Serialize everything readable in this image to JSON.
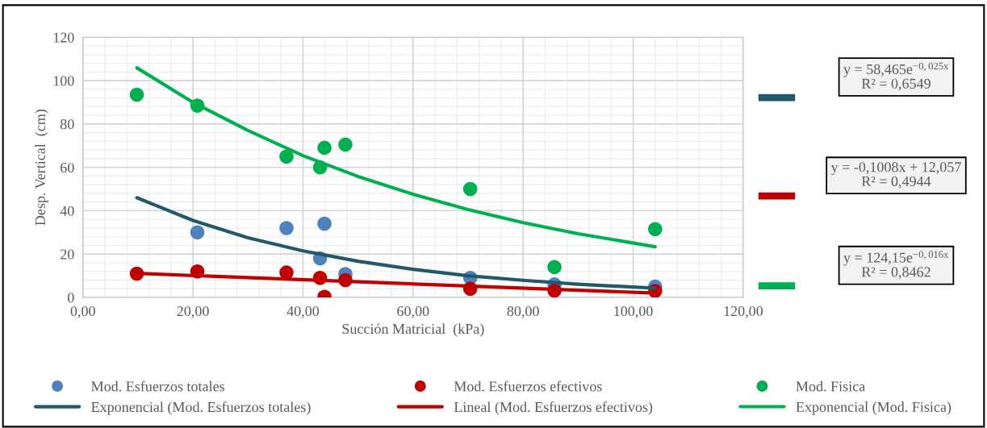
{
  "chart_data": {
    "type": "scatter",
    "xlabel": "Succión Matricial  (kPa)",
    "ylabel": "Desp. Vertical  (cm)",
    "xlim": [
      0,
      120
    ],
    "ylim": [
      0,
      120
    ],
    "xticks": [
      {
        "value": 0,
        "label": "0,00"
      },
      {
        "value": 20,
        "label": "20,00"
      },
      {
        "value": 40,
        "label": "40,00"
      },
      {
        "value": 60,
        "label": "60,00"
      },
      {
        "value": 80,
        "label": "80,00"
      },
      {
        "value": 100,
        "label": "100,00"
      },
      {
        "value": 120,
        "label": "120,00"
      }
    ],
    "yticks": [
      0,
      20,
      40,
      60,
      80,
      100,
      120
    ],
    "grid": true,
    "legend": "bottom",
    "marker": "circle",
    "series": [
      {
        "name": "Mod. Esfuerzos totales",
        "color": "#4f81bd",
        "x": [
          20.8,
          37,
          43.1,
          43.9,
          47.7,
          70.4,
          85.7,
          104
        ],
        "values": [
          30,
          32,
          18,
          34,
          10.8,
          9,
          6,
          5
        ]
      },
      {
        "name": "Exponencial (Mod. Esfuerzos totales)",
        "type": "line",
        "color": "#215968",
        "marker": "none",
        "x": [
          9.8,
          20,
          30,
          40,
          50,
          60,
          70,
          80,
          90,
          104
        ],
        "values": [
          46,
          35.5,
          27.5,
          21.5,
          16.7,
          13,
          10,
          7.9,
          6.1,
          4.3
        ]
      },
      {
        "name": "Mod. Esfuerzos efectivos",
        "color": "#c00000",
        "x": [
          9.8,
          20.8,
          37,
          43.1,
          43.9,
          47.7,
          70.4,
          85.7,
          104
        ],
        "values": [
          11,
          12,
          11.5,
          9,
          0.3,
          8,
          4,
          3.2,
          3
        ]
      },
      {
        "name": "Lineal (Mod. Esfuerzos efectivos)",
        "type": "line",
        "color": "#c00000",
        "marker": "none",
        "x": [
          9.8,
          104
        ],
        "values": [
          11.1,
          2
        ]
      },
      {
        "name": "Mod. Fisica",
        "color": "#00b050",
        "x": [
          9.8,
          20.8,
          37,
          43.1,
          43.9,
          47.7,
          70.4,
          85.7,
          104
        ],
        "values": [
          93.5,
          88.5,
          65,
          60,
          69,
          70.5,
          50,
          14,
          31.5
        ]
      },
      {
        "name": "Exponencial (Mod. Fisica)",
        "type": "line",
        "color": "#00b050",
        "marker": "none",
        "x": [
          9.8,
          20,
          30,
          40,
          50,
          60,
          70,
          80,
          90,
          104
        ],
        "values": [
          105.9,
          90,
          77,
          65.4,
          55.8,
          47.6,
          40.5,
          34.5,
          29.4,
          23.4
        ]
      }
    ],
    "annotations": [
      "y = 58,465e$^{−0,025x}$\nR² = 0,6549",
      "y = -0,1008x + 12,057\nR² = 0,4944",
      "y = 124,15e$^{−0,016x}$\nR² = 0,8462"
    ]
  }
}
